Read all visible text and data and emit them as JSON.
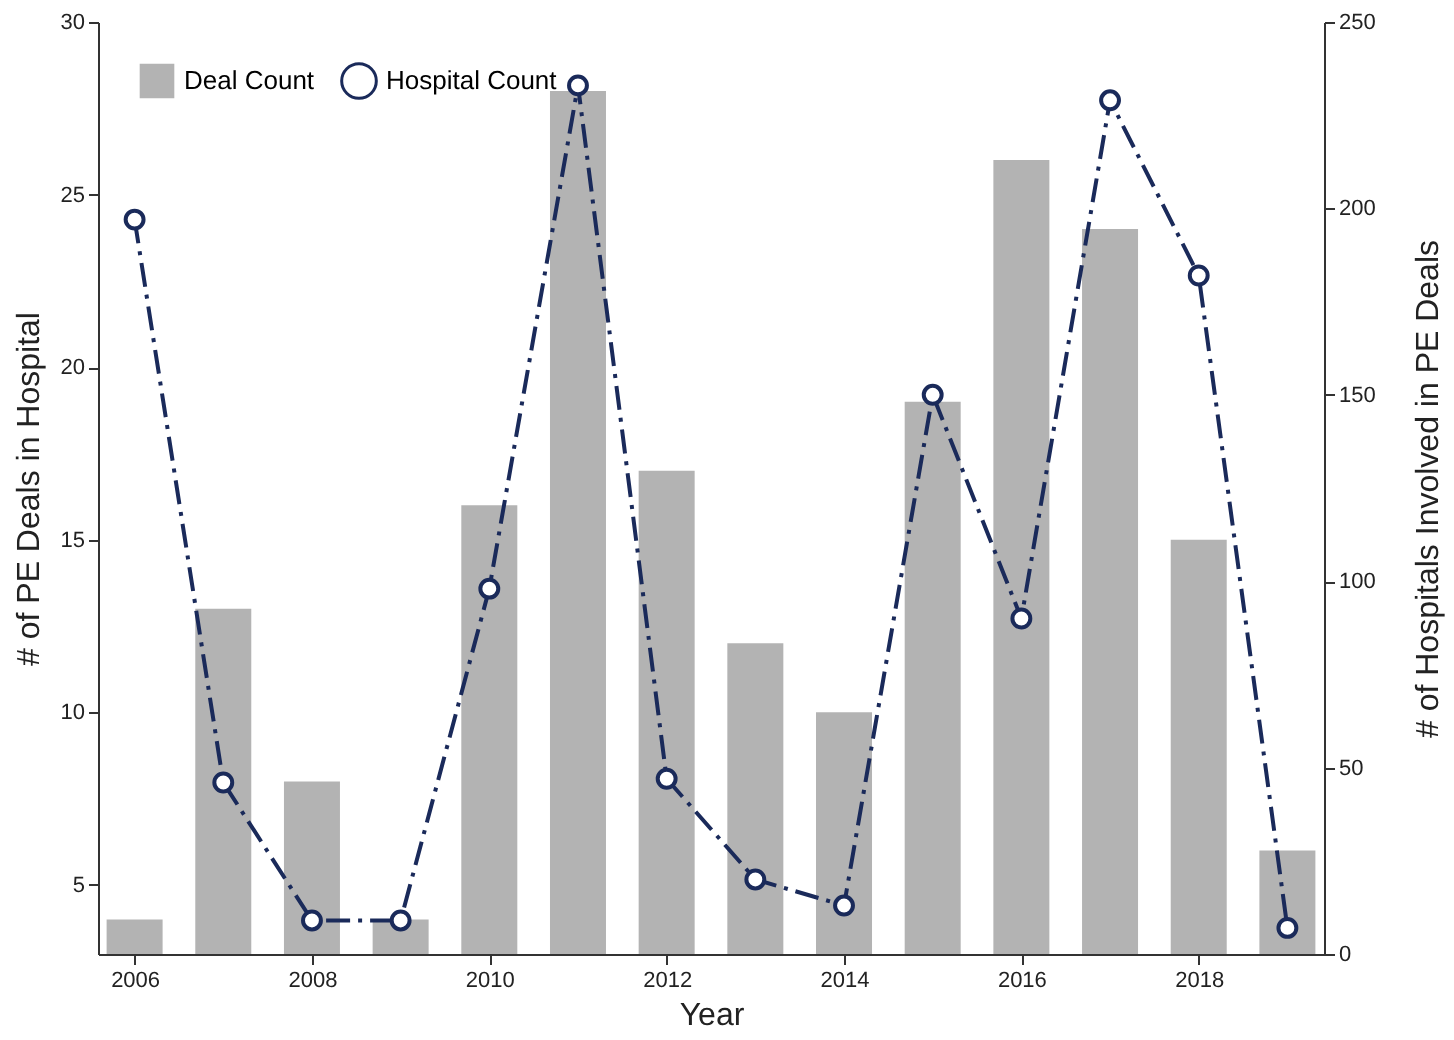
{
  "chart_data": {
    "type": "bar",
    "xlabel": "Year",
    "ylabel": "# of PE Deals in Hospital",
    "y2label": "# of Hospitals Involved in PE Deals",
    "x": [
      2006,
      2007,
      2008,
      2009,
      2010,
      2011,
      2012,
      2013,
      2014,
      2015,
      2016,
      2017,
      2018,
      2019
    ],
    "series": [
      {
        "name": "Deal Count",
        "color": "#b3b3b3",
        "values": [
          4,
          13,
          8,
          4,
          16,
          28,
          17,
          12,
          10,
          19,
          26,
          24,
          15,
          6
        ]
      },
      {
        "name": "Hospital Count",
        "type": "line",
        "axis": "y2",
        "color": "#1a2a5a",
        "marker": "circle",
        "line_style": "dashed",
        "values": [
          197,
          46,
          9,
          9,
          98,
          233,
          47,
          20,
          13,
          150,
          90,
          229,
          182,
          7
        ]
      }
    ],
    "xlim": [
      2005.7,
      2019.3
    ],
    "xticks": [
      2006,
      2008,
      2010,
      2012,
      2014,
      2016,
      2018
    ],
    "ylim": [
      3,
      30
    ],
    "yticks": [
      5,
      10,
      15,
      20,
      25,
      30
    ],
    "y2lim": [
      0,
      250
    ],
    "y2ticks": [
      0,
      50,
      100,
      150,
      200,
      250
    ],
    "grid": false,
    "legend": "top left"
  }
}
